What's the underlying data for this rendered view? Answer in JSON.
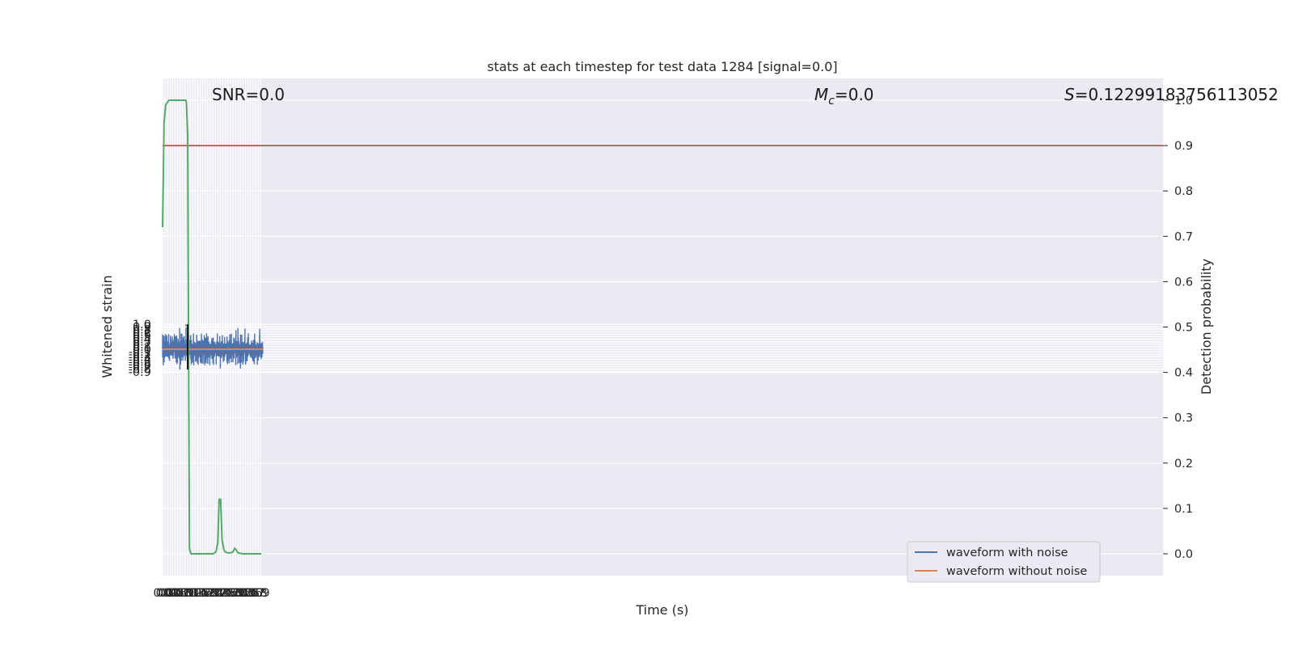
{
  "chart_data": {
    "type": "line",
    "title": "stats at each timestep for test data 1284 [signal=0.0]",
    "xlabel": "Time (s)",
    "ylabel": "Whitened strain",
    "y2label": "Detection probability",
    "xlim": [
      0.0,
      3.99
    ],
    "ylim": [
      -0.9,
      1.09
    ],
    "y2lim": [
      -0.045,
      1.045
    ],
    "x_ticks": [
      "0.0",
      "0.1",
      "0.2",
      "0.3",
      "0.4",
      "0.5",
      "0.6",
      "0.7",
      "0.8",
      "0.9",
      "1.0",
      "1.1",
      "1.2",
      "1.3",
      "1.4",
      "1.5",
      "1.6",
      "1.7",
      "1.8",
      "1.9",
      "2.0",
      "2.1",
      "2.2",
      "2.3",
      "2.4",
      "2.5",
      "2.6",
      "2.7",
      "2.8",
      "2.9",
      "3.0",
      "3.1",
      "3.2",
      "3.3",
      "3.4",
      "3.5",
      "3.6",
      "3.7",
      "3.8",
      "3.9"
    ],
    "y_ticks": [
      "1.0",
      "0.9",
      "0.8",
      "0.7",
      "0.6",
      "0.5",
      "0.4",
      "0.3",
      "0.2",
      "0.1",
      "0.0",
      "-0.1",
      "-0.2",
      "-0.3",
      "-0.4",
      "-0.5",
      "-0.6",
      "-0.7",
      "-0.8",
      "-0.9"
    ],
    "y2_ticks": [
      "1.0",
      "0.9",
      "0.8",
      "0.7",
      "0.6",
      "0.5",
      "0.4",
      "0.3",
      "0.2",
      "0.1",
      "0.0"
    ],
    "grid": true,
    "legend_position": "lower-right",
    "annotations": {
      "snr": "SNR=0.0",
      "mc": "=0.0",
      "mc_symbol": "M",
      "mc_subscript": "c",
      "s_value": "=0.12299183756113052",
      "s_symbol": "S"
    },
    "series": [
      {
        "name": "waveform with noise",
        "axis": "left",
        "color": "#4c72b0",
        "note": "dense noise; approx. range -0.81 to 1.0",
        "peaks": [
          [
            0.0,
            0.6
          ],
          [
            0.68,
            0.85
          ],
          [
            0.93,
            1.0
          ],
          [
            2.92,
            0.76
          ],
          [
            3.0,
            0.85
          ],
          [
            3.28,
            0.83
          ],
          [
            3.87,
            0.82
          ],
          [
            0.69,
            -0.81
          ],
          [
            3.1,
            -0.77
          ],
          [
            2.3,
            -0.77
          ]
        ]
      },
      {
        "name": "waveform without noise",
        "axis": "left",
        "color": "#dd8452",
        "x": [
          0.0,
          3.99
        ],
        "y": [
          0.0,
          0.0
        ]
      },
      {
        "axis": "right",
        "color": "#55a868",
        "x": [
          0.0,
          0.06,
          0.125,
          0.19,
          0.25,
          0.31,
          0.375,
          0.44,
          0.5,
          0.56,
          0.625,
          0.69,
          0.75,
          0.81,
          0.875,
          0.93,
          0.95,
          1.0,
          1.07,
          1.13,
          1.2,
          1.4,
          1.6,
          1.8,
          2.0,
          2.07,
          2.13,
          2.2,
          2.25,
          2.31,
          2.37,
          2.44,
          2.5,
          2.6,
          2.7,
          2.8,
          2.87,
          2.94,
          3.0,
          3.2,
          3.4,
          3.6,
          3.8,
          3.93
        ],
        "y": [
          0.72,
          0.95,
          0.99,
          0.995,
          1.0,
          1.0,
          1.0,
          1.0,
          1.0,
          1.0,
          1.0,
          1.0,
          1.0,
          1.0,
          1.0,
          1.0,
          0.995,
          0.92,
          0.012,
          0.0,
          0.0,
          0.0,
          0.0,
          0.0,
          0.0,
          0.002,
          0.005,
          0.025,
          0.12,
          0.12,
          0.03,
          0.009,
          0.004,
          0.002,
          0.002,
          0.004,
          0.012,
          0.008,
          0.002,
          0.0,
          0.0,
          0.0,
          0.0,
          0.0
        ]
      },
      {
        "axis": "right",
        "color": "#c44e52",
        "type": "hline",
        "y": 0.9
      },
      {
        "axis": "left",
        "color": "#000000",
        "type": "vline",
        "x": 1.0,
        "y_range": [
          -0.81,
          1.0
        ]
      }
    ]
  }
}
